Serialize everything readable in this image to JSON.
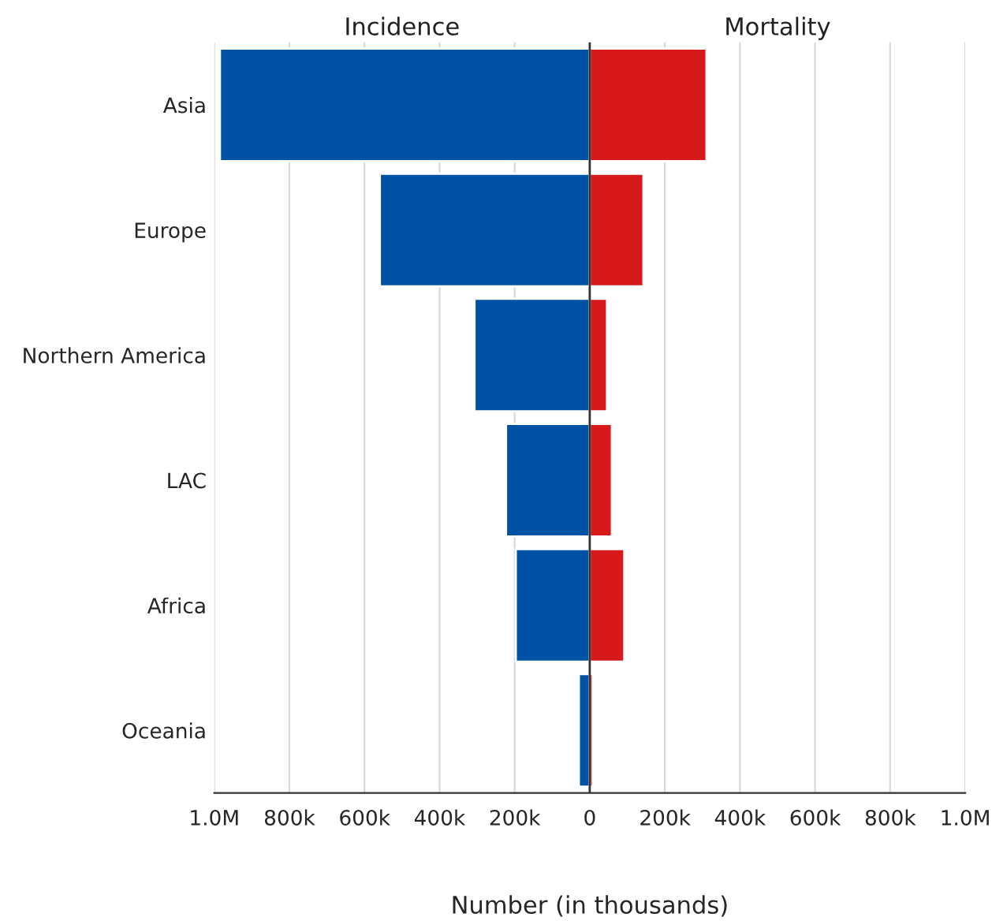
{
  "chart_data": {
    "type": "bar",
    "orientation": "horizontal",
    "xlabel": "Number (in thousands)",
    "categories": [
      "Asia",
      "Europe",
      "Northern America",
      "LAC",
      "Africa",
      "Oceania"
    ],
    "series": [
      {
        "name": "Incidence",
        "color": "#0052a5",
        "values": [
          -985000,
          -559000,
          -307000,
          -223000,
          -197000,
          -29000
        ]
      },
      {
        "name": "Mortality",
        "color": "#d7191c",
        "values": [
          311000,
          143000,
          46000,
          59000,
          92000,
          8000
        ]
      }
    ],
    "xlim": [
      -1000000,
      1000000
    ],
    "xticks": [
      {
        "value": -1000000,
        "label": "1.0M"
      },
      {
        "value": -800000,
        "label": "800k"
      },
      {
        "value": -600000,
        "label": "600k"
      },
      {
        "value": -400000,
        "label": "400k"
      },
      {
        "value": -200000,
        "label": "200k"
      },
      0,
      {
        "value": 200000,
        "label": "200k"
      },
      {
        "value": 400000,
        "label": "400k"
      },
      {
        "value": 600000,
        "label": "600k"
      },
      {
        "value": 800000,
        "label": "800k"
      },
      {
        "value": 1000000,
        "label": "1.0M"
      }
    ],
    "grid": "x",
    "legend": false,
    "stacked": true,
    "ref_lines": [
      {
        "axis": "x",
        "value": 0,
        "color": "#333333"
      }
    ]
  }
}
